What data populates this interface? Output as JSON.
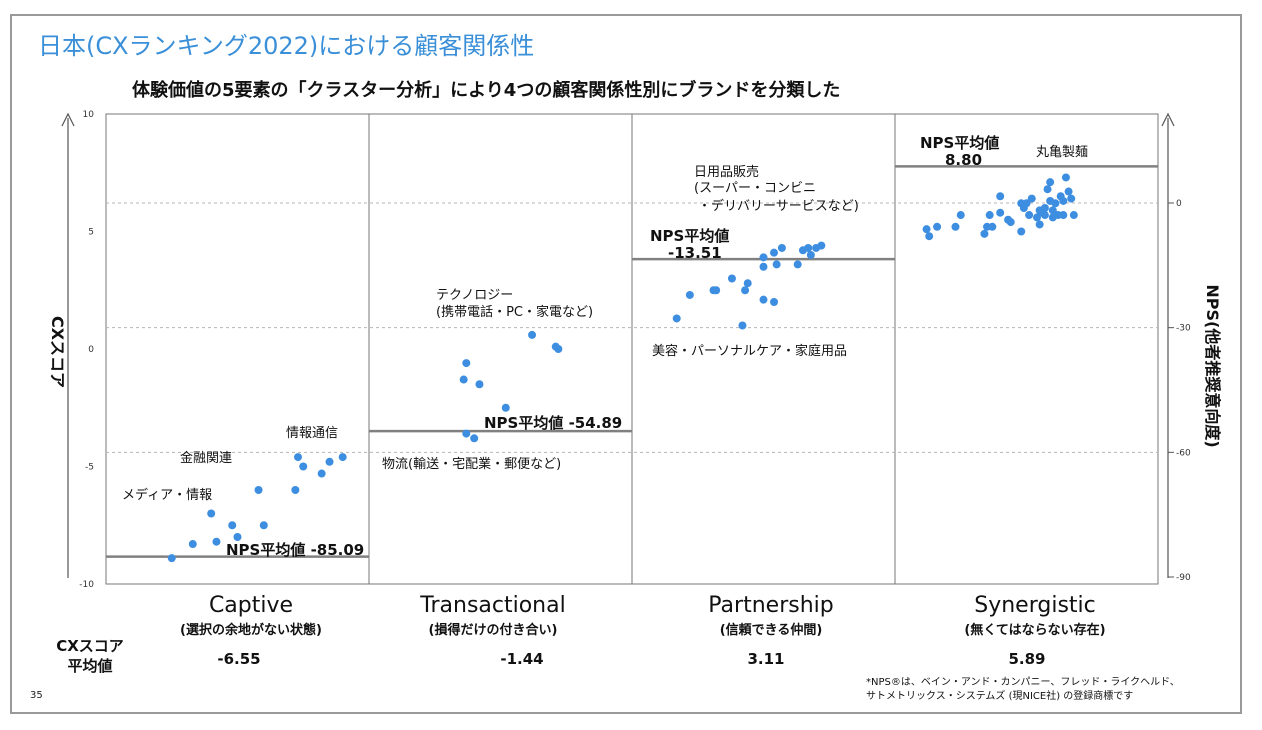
{
  "header": {
    "title": "日本(CXランキング2022)における顧客関係性",
    "subtitle": "体験価値の5要素の「クラスター分析」により4つの顧客関係性別にブランドを分類した"
  },
  "page_number": "35",
  "footnote": {
    "line1": "*NPS®は、ベイン・アンド・カンパニー、フレッド・ライクヘルド、",
    "line2": "サトメトリックス・システムズ (現NICE社) の登録商標です"
  },
  "colors": {
    "dot": "#3d8ee0",
    "title": "#3a8fd8",
    "nps_line": "#808080",
    "dashed": "#b5b5b5"
  },
  "chart_data": {
    "type": "scatter",
    "left_axis": {
      "label": "CXスコア",
      "range": [
        -10,
        10
      ],
      "ticks": [
        10,
        5,
        0,
        -5,
        -10
      ],
      "tick_labels": [
        "10",
        "5",
        "0",
        "-5",
        "-10"
      ]
    },
    "right_axis": {
      "label": "NPS(他者推奨意向度)",
      "ticks": [
        0,
        -30,
        -60,
        -90
      ],
      "tick_labels": [
        "0",
        "-30",
        "-60",
        "-90"
      ]
    },
    "avg_row_label": [
      "CXスコア",
      "平均値"
    ],
    "segments": [
      {
        "name": "Captive",
        "subtitle": "(選択の余地がない状態)",
        "cx_avg": "-6.55",
        "nps_avg": -85.09,
        "nps_label": "NPS平均値 -85.09",
        "annotations": [
          "情報通信",
          "金融関連",
          "メディア・情報"
        ],
        "points": [
          [
            0.25,
            -8.9
          ],
          [
            0.33,
            -8.3
          ],
          [
            0.42,
            -8.2
          ],
          [
            0.4,
            -7.0
          ],
          [
            0.5,
            -8.0
          ],
          [
            0.48,
            -7.5
          ],
          [
            0.6,
            -7.5
          ],
          [
            0.58,
            -6.0
          ],
          [
            0.72,
            -6.0
          ],
          [
            0.75,
            -5.0
          ],
          [
            0.82,
            -5.3
          ],
          [
            0.85,
            -4.8
          ],
          [
            0.73,
            -4.6
          ],
          [
            0.9,
            -4.6
          ]
        ]
      },
      {
        "name": "Transactional",
        "subtitle": "(損得だけの付き合い)",
        "cx_avg": "-1.44",
        "nps_avg": -54.89,
        "nps_label": "NPS平均値 -54.89",
        "annotations": [
          "テクノロジー",
          "(携帯電話・PC・家電など)",
          "物流(輸送・宅配業・郵便など)"
        ],
        "points": [
          [
            0.62,
            0.6
          ],
          [
            0.71,
            0.1
          ],
          [
            0.72,
            0.0
          ],
          [
            0.37,
            -0.6
          ],
          [
            0.36,
            -1.3
          ],
          [
            0.42,
            -1.5
          ],
          [
            0.52,
            -2.5
          ],
          [
            0.37,
            -3.6
          ],
          [
            0.4,
            -3.8
          ]
        ]
      },
      {
        "name": "Partnership",
        "subtitle": "(信頼できる仲間)",
        "cx_avg": "3.11",
        "nps_avg": -13.51,
        "nps_label": "NPS平均値",
        "nps_label_value": "-13.51",
        "annotations": [
          "日用品販売",
          "(スーパー・コンビニ",
          "・デリバリーサービスなど)",
          "美容・パーソナルケア・家庭用品"
        ],
        "points": [
          [
            0.17,
            1.3
          ],
          [
            0.22,
            2.3
          ],
          [
            0.31,
            2.5
          ],
          [
            0.32,
            2.5
          ],
          [
            0.38,
            3.0
          ],
          [
            0.43,
            2.5
          ],
          [
            0.44,
            2.8
          ],
          [
            0.5,
            2.1
          ],
          [
            0.54,
            2.0
          ],
          [
            0.42,
            1.0
          ],
          [
            0.5,
            3.5
          ],
          [
            0.5,
            3.9
          ],
          [
            0.55,
            3.6
          ],
          [
            0.54,
            4.1
          ],
          [
            0.57,
            4.3
          ],
          [
            0.63,
            3.6
          ],
          [
            0.65,
            4.2
          ],
          [
            0.67,
            4.3
          ],
          [
            0.68,
            4.0
          ],
          [
            0.7,
            4.3
          ],
          [
            0.72,
            4.4
          ]
        ]
      },
      {
        "name": "Synergistic",
        "subtitle": "(無くてはならない存在)",
        "cx_avg": "5.89",
        "nps_avg": 8.8,
        "nps_label": "NPS平均値",
        "nps_label_value": "8.80",
        "annotations": [
          "丸亀製麺"
        ],
        "points": [
          [
            0.12,
            5.1
          ],
          [
            0.13,
            4.8
          ],
          [
            0.16,
            5.2
          ],
          [
            0.23,
            5.2
          ],
          [
            0.25,
            5.7
          ],
          [
            0.34,
            4.9
          ],
          [
            0.35,
            5.2
          ],
          [
            0.37,
            5.2
          ],
          [
            0.36,
            5.7
          ],
          [
            0.4,
            6.5
          ],
          [
            0.4,
            5.8
          ],
          [
            0.43,
            5.5
          ],
          [
            0.44,
            5.4
          ],
          [
            0.48,
            5.0
          ],
          [
            0.48,
            6.2
          ],
          [
            0.49,
            6.0
          ],
          [
            0.5,
            6.2
          ],
          [
            0.51,
            5.7
          ],
          [
            0.52,
            6.4
          ],
          [
            0.54,
            5.6
          ],
          [
            0.55,
            5.3
          ],
          [
            0.55,
            5.9
          ],
          [
            0.56,
            5.8
          ],
          [
            0.57,
            6.0
          ],
          [
            0.57,
            5.7
          ],
          [
            0.58,
            6.8
          ],
          [
            0.59,
            7.1
          ],
          [
            0.59,
            6.3
          ],
          [
            0.6,
            5.9
          ],
          [
            0.6,
            5.6
          ],
          [
            0.61,
            6.2
          ],
          [
            0.62,
            5.7
          ],
          [
            0.63,
            6.5
          ],
          [
            0.64,
            6.3
          ],
          [
            0.64,
            5.7
          ],
          [
            0.65,
            7.3
          ],
          [
            0.66,
            6.7
          ],
          [
            0.67,
            6.4
          ],
          [
            0.68,
            5.7
          ]
        ]
      }
    ],
    "dashed_gridlines_nps": [
      0,
      -30,
      -60
    ]
  }
}
